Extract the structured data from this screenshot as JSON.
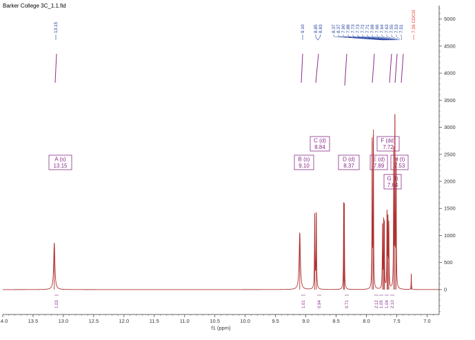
{
  "file_title": "Barker College 3C_1.1.fid",
  "chart_data": {
    "type": "line",
    "xlabel": "f1 (ppm)",
    "xlim": [
      14.0,
      6.8
    ],
    "ylim": [
      -460,
      5250
    ],
    "x_ticks": [
      "14.0",
      "13.5",
      "13.0",
      "12.5",
      "12.0",
      "11.5",
      "11.0",
      "10.5",
      "10.0",
      "9.5",
      "9.0",
      "8.5",
      "8.0",
      "7.5",
      "7.0"
    ],
    "x_tick_values": [
      14.0,
      13.5,
      13.0,
      12.5,
      12.0,
      11.5,
      11.0,
      10.5,
      10.0,
      9.5,
      9.0,
      8.5,
      8.0,
      7.5,
      7.0
    ],
    "y_ticks": [
      "5000",
      "4500",
      "4000",
      "3500",
      "3000",
      "2500",
      "2000",
      "1500",
      "1000",
      "500",
      "0"
    ],
    "y_tick_values": [
      5000,
      4500,
      4000,
      3500,
      3000,
      2500,
      2000,
      1500,
      1000,
      500,
      0
    ],
    "series_color": "#b03030",
    "label_color": "#1f3fa0",
    "box_color": "#8a2a8a",
    "ref_color": "#ee3322",
    "peaks": [
      {
        "x": 13.15,
        "y": 860,
        "w": 0.012
      },
      {
        "x": 9.1,
        "y": 1050,
        "w": 0.012
      },
      {
        "x": 8.853,
        "y": 1360,
        "w": 0.005
      },
      {
        "x": 8.827,
        "y": 1380,
        "w": 0.005
      },
      {
        "x": 8.375,
        "y": 1420,
        "w": 0.004
      },
      {
        "x": 8.365,
        "y": 1400,
        "w": 0.004
      },
      {
        "x": 7.905,
        "y": 2700,
        "w": 0.004
      },
      {
        "x": 7.885,
        "y": 2850,
        "w": 0.004
      },
      {
        "x": 7.735,
        "y": 1150,
        "w": 0.004
      },
      {
        "x": 7.715,
        "y": 1120,
        "w": 0.004
      },
      {
        "x": 7.705,
        "y": 1080,
        "w": 0.004
      },
      {
        "x": 7.66,
        "y": 1350,
        "w": 0.004
      },
      {
        "x": 7.645,
        "y": 1200,
        "w": 0.004
      },
      {
        "x": 7.63,
        "y": 1150,
        "w": 0.004
      },
      {
        "x": 7.55,
        "y": 2500,
        "w": 0.004
      },
      {
        "x": 7.53,
        "y": 3050,
        "w": 0.004
      },
      {
        "x": 7.51,
        "y": 2300,
        "w": 0.004
      },
      {
        "x": 7.26,
        "y": 290,
        "w": 0.003
      }
    ],
    "peak_labels": [
      "13.15",
      "9.10",
      "8.85",
      "8.83",
      "8.37",
      "8.37",
      "7.90",
      "7.88",
      "7.73",
      "7.73",
      "7.72",
      "7.71",
      "7.68",
      "7.66",
      "7.64",
      "7.63",
      "7.55",
      "7.53",
      "7.51"
    ],
    "reference_label": "7.26 CDCl3",
    "multiplets": [
      {
        "name": "A (s)",
        "shift": "13.15"
      },
      {
        "name": "B (s)",
        "shift": "9.10"
      },
      {
        "name": "C (d)",
        "shift": "8.84"
      },
      {
        "name": "D (d)",
        "shift": "8.37"
      },
      {
        "name": "E (d)",
        "shift": "7.89"
      },
      {
        "name": "F (dd)",
        "shift": "7.72"
      },
      {
        "name": "G (t)",
        "shift": "7.64"
      },
      {
        "name": "H (t)",
        "shift": "7.53"
      }
    ],
    "integrals": [
      "1.03",
      "1.01",
      "0.94",
      "0.71",
      "2.12",
      "1.05",
      "1.04",
      "2.10"
    ]
  }
}
